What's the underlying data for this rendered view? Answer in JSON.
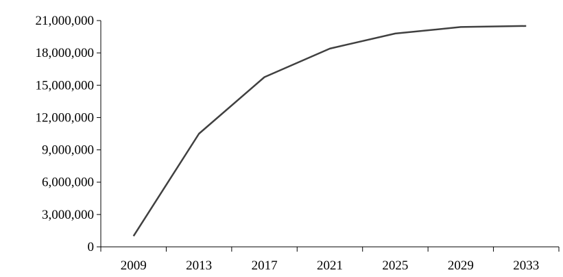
{
  "chart_data": {
    "type": "line",
    "title": "",
    "xlabel": "",
    "ylabel": "",
    "categories": [
      "2009",
      "2013",
      "2017",
      "2021",
      "2025",
      "2029",
      "2033"
    ],
    "series": [
      {
        "values": [
          1000000,
          10500000,
          15750000,
          18400000,
          19800000,
          20400000,
          20500000
        ]
      }
    ],
    "ylim": [
      0,
      21000000
    ],
    "yticks": [
      0,
      3000000,
      6000000,
      9000000,
      12000000,
      15000000,
      18000000,
      21000000
    ],
    "ytick_labels": [
      "0",
      "3,000,000",
      "6,000,000",
      "9,000,000",
      "12,000,000",
      "15,000,000",
      "18,000,000",
      "21,000,000"
    ],
    "grid": false,
    "legend": "none",
    "colors": {
      "line": "#404040",
      "axis": "#000000"
    }
  }
}
